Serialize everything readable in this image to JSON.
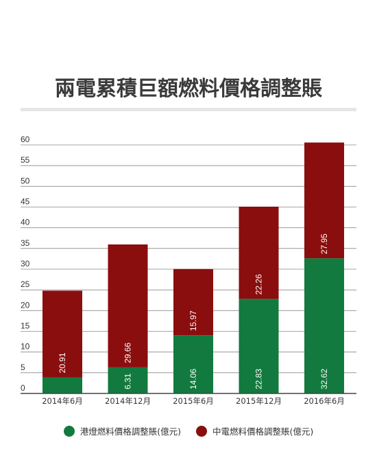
{
  "chart_data": {
    "type": "bar",
    "stacked": true,
    "title": "兩電累積巨額燃料價格調整賬",
    "categories": [
      "2014年6月",
      "2014年12月",
      "2015年6月",
      "2015年12月",
      "2016年6月"
    ],
    "series": [
      {
        "name": "港燈燃料價格調整賬(億元)",
        "color": "#127a3e",
        "values": [
          3.9,
          6.31,
          14.06,
          22.83,
          32.62
        ],
        "labels": [
          "",
          "6.31",
          "14.06",
          "22.83",
          "32.62"
        ]
      },
      {
        "name": "中電燃料價格調整賬(億元)",
        "color": "#8b0e0e",
        "values": [
          20.91,
          29.66,
          15.97,
          22.26,
          27.95
        ],
        "labels": [
          "20.91",
          "29.66",
          "15.97",
          "22.26",
          "27.95"
        ]
      }
    ],
    "ylim": [
      0,
      60
    ],
    "yticks": [
      0,
      5,
      10,
      15,
      20,
      25,
      30,
      35,
      40,
      45,
      50,
      55,
      60
    ],
    "grid": true,
    "legend_position": "bottom"
  }
}
